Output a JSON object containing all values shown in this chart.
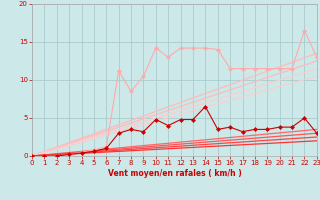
{
  "background_color": "#cce8e8",
  "grid_color": "#aacccc",
  "xlabel": "Vent moyen/en rafales ( km/h )",
  "xlabel_color": "#cc0000",
  "tick_color": "#cc0000",
  "xlim": [
    0,
    23
  ],
  "ylim": [
    0,
    20
  ],
  "yticks": [
    0,
    5,
    10,
    15,
    20
  ],
  "xticks": [
    0,
    1,
    2,
    3,
    4,
    5,
    6,
    7,
    8,
    9,
    10,
    11,
    12,
    13,
    14,
    15,
    16,
    17,
    18,
    19,
    20,
    21,
    22,
    23
  ],
  "lines": [
    {
      "x": [
        0,
        1,
        2,
        3,
        4,
        5,
        6,
        7,
        8,
        9,
        10,
        11,
        12,
        13,
        14,
        15,
        16,
        17,
        18,
        19,
        20,
        21,
        22,
        23
      ],
      "y": [
        0,
        0,
        0,
        0.2,
        0.5,
        0.8,
        1.2,
        11.2,
        8.5,
        10.5,
        14.2,
        13.0,
        14.2,
        14.2,
        14.2,
        14.0,
        11.5,
        11.5,
        11.5,
        11.5,
        11.5,
        11.5,
        16.5,
        13.0
      ],
      "color": "#ffaaaa",
      "lw": 0.8,
      "marker": "D",
      "markersize": 2.0,
      "zorder": 4
    },
    {
      "x": [
        0,
        23
      ],
      "y": [
        0,
        13.5
      ],
      "color": "#ffbbbb",
      "lw": 0.9,
      "marker": null,
      "zorder": 2
    },
    {
      "x": [
        0,
        23
      ],
      "y": [
        0,
        12.5
      ],
      "color": "#ffbbbb",
      "lw": 0.9,
      "marker": null,
      "zorder": 2
    },
    {
      "x": [
        0,
        23
      ],
      "y": [
        0,
        11.5
      ],
      "color": "#ffcccc",
      "lw": 0.9,
      "marker": null,
      "zorder": 2
    },
    {
      "x": [
        0,
        23
      ],
      "y": [
        0,
        10.5
      ],
      "color": "#ffcccc",
      "lw": 0.8,
      "marker": null,
      "zorder": 2
    },
    {
      "x": [
        0,
        23
      ],
      "y": [
        0,
        3.5
      ],
      "color": "#ff6666",
      "lw": 0.9,
      "marker": null,
      "zorder": 2
    },
    {
      "x": [
        0,
        23
      ],
      "y": [
        0,
        3.0
      ],
      "color": "#ff5555",
      "lw": 0.9,
      "marker": null,
      "zorder": 2
    },
    {
      "x": [
        0,
        23
      ],
      "y": [
        0,
        2.5
      ],
      "color": "#ff4444",
      "lw": 0.9,
      "marker": null,
      "zorder": 2
    },
    {
      "x": [
        0,
        23
      ],
      "y": [
        0,
        2.0
      ],
      "color": "#ff3333",
      "lw": 0.9,
      "marker": null,
      "zorder": 2
    },
    {
      "x": [
        0,
        1,
        2,
        3,
        4,
        5,
        6,
        7,
        8,
        9,
        10,
        11,
        12,
        13,
        14,
        15,
        16,
        17,
        18,
        19,
        20,
        21,
        22,
        23
      ],
      "y": [
        0,
        0,
        0,
        0.2,
        0.4,
        0.6,
        1.0,
        3.0,
        3.5,
        3.2,
        4.8,
        4.0,
        4.8,
        4.8,
        6.5,
        3.5,
        3.8,
        3.2,
        3.5,
        3.5,
        3.8,
        3.8,
        5.0,
        3.0
      ],
      "color": "#cc0000",
      "lw": 0.8,
      "marker": "D",
      "markersize": 2.0,
      "zorder": 5
    }
  ]
}
